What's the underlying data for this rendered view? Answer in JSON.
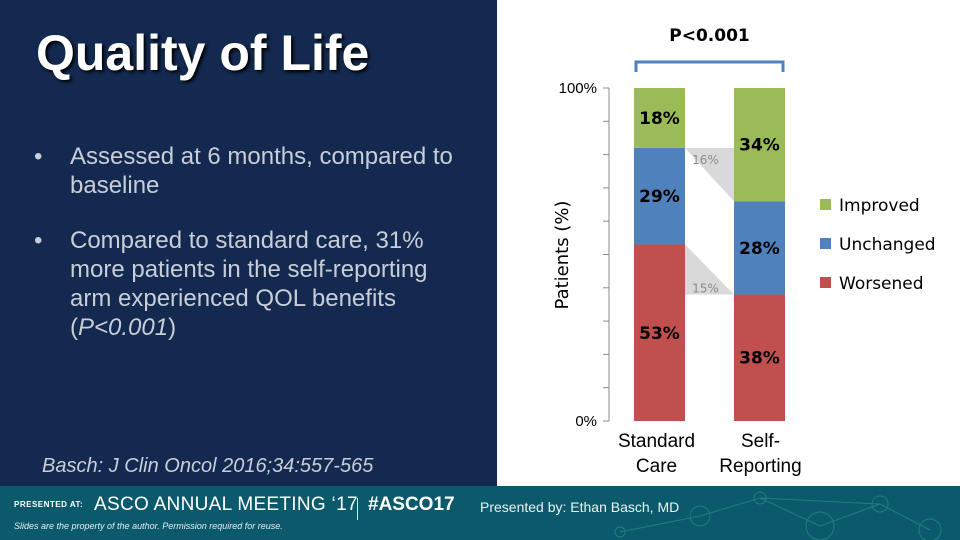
{
  "slide": {
    "title": "Quality of Life",
    "bullets": [
      {
        "marker": "•",
        "text": "Assessed at 6 months, compared to baseline"
      },
      {
        "marker": "•",
        "text": "Compared to standard care, 31% more patients in the self-reporting arm experienced QOL benefits (P<0.001)"
      }
    ],
    "citation": "Basch: J Clin Oncol 2016;34:557-565"
  },
  "chart_data": {
    "type": "bar",
    "stacked": true,
    "categories": [
      "Standard Care",
      "Self-Reporting"
    ],
    "category_lines": [
      [
        "Standard",
        "Care"
      ],
      [
        "Self-",
        "Reporting"
      ]
    ],
    "series": [
      {
        "name": "Worsened",
        "values": [
          53,
          38
        ],
        "labels": [
          "53%",
          "38%"
        ],
        "color": "#c0504d"
      },
      {
        "name": "Unchanged",
        "values": [
          29,
          28
        ],
        "labels": [
          "29%",
          "28%"
        ],
        "color": "#4f81bd"
      },
      {
        "name": "Improved",
        "values": [
          18,
          34
        ],
        "labels": [
          "18%",
          "34%"
        ],
        "color": "#9bbb59"
      }
    ],
    "legend_order": [
      "Improved",
      "Unchanged",
      "Worsened"
    ],
    "legend_position": "right",
    "ylabel": "Patients (%)",
    "ylim": [
      0,
      100
    ],
    "yticks_labeled": [
      "0%",
      "100%"
    ],
    "connector_labels": [
      {
        "text": "16%",
        "between": "Improved"
      },
      {
        "text": "15%",
        "between": "Worsened"
      }
    ],
    "significance": "P<0.001",
    "bracket_color": "#4f81bd"
  },
  "footer": {
    "presented_at": "PRESENTED AT:",
    "meeting": "ASCO ANNUAL MEETING ‘17",
    "hashtag": "#ASCO17",
    "presenter": "Presented by: Ethan Basch, MD",
    "disclaimer": "Slides are the property of the author. Permission required for reuse."
  }
}
